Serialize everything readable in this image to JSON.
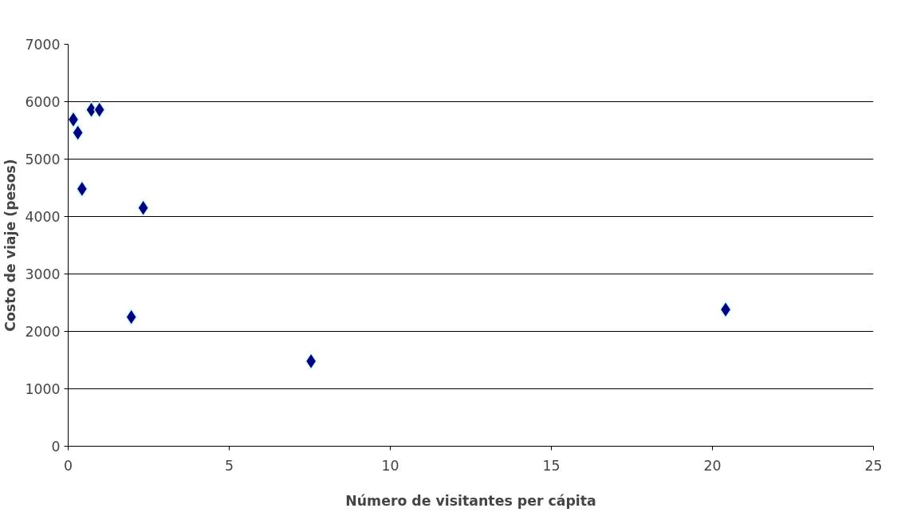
{
  "chart_data": {
    "type": "scatter",
    "xlabel": "Número de visitantes per cápita",
    "ylabel": "Costo de viaje (pesos)",
    "x": [
      0.16,
      0.3,
      0.43,
      0.72,
      0.97,
      2.33,
      1.96,
      7.54,
      20.41
    ],
    "series": [
      {
        "color": "#000080",
        "values": [
          5690,
          5460,
          4480,
          5860,
          5860,
          4150,
          2250,
          1480,
          2380
        ]
      }
    ],
    "xlim": [
      0,
      25
    ],
    "xticks": [
      0,
      5,
      10,
      15,
      20,
      25
    ],
    "ylim": [
      0,
      7000
    ],
    "yticks": [
      0,
      1000,
      2000,
      3000,
      4000,
      5000,
      6000,
      7000
    ],
    "grid": "y",
    "marker": "diamond"
  }
}
